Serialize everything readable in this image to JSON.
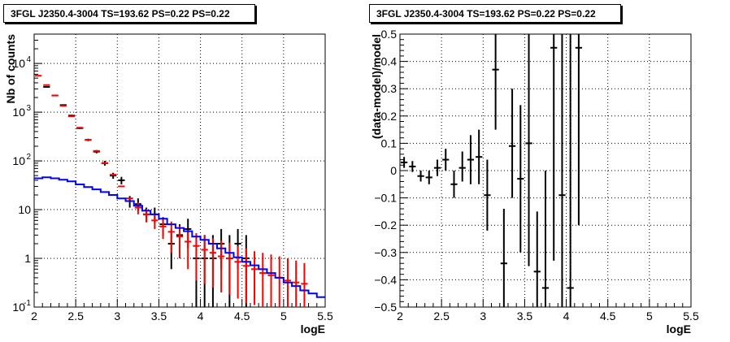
{
  "colors": {
    "data": "#000000",
    "model": "#ff0000",
    "background": "#0000ff",
    "grid": "#000000"
  },
  "chart_data": [
    {
      "type": "scatter",
      "title": "3FGL J2350.4-3004 TS=193.62 PS=0.22 PS=0.22",
      "xlabel": "logE",
      "ylabel": "Nb of counts",
      "log_y": true,
      "grid": true,
      "xlim": [
        2,
        5.5
      ],
      "ylim": [
        0.1,
        40000
      ],
      "xticks": [
        "2",
        "2.5",
        "3",
        "3.5",
        "4",
        "4.5",
        "5",
        "5.5"
      ],
      "yticks": [
        {
          "v": 0.1,
          "base": "10",
          "exp": "-1"
        },
        {
          "v": 1,
          "base": "1",
          "exp": ""
        },
        {
          "v": 10,
          "base": "10",
          "exp": ""
        },
        {
          "v": 100,
          "base": "10",
          "exp": "2"
        },
        {
          "v": 1000,
          "base": "10",
          "exp": "3"
        },
        {
          "v": 10000,
          "base": "10",
          "exp": "4"
        }
      ],
      "bin_width": 0.1,
      "series": [
        {
          "role": "data",
          "x": [
            2.15,
            2.25,
            2.35,
            2.45,
            2.55,
            2.65,
            2.75,
            2.85,
            2.95,
            3.05,
            3.15,
            3.25,
            3.35,
            3.45,
            3.55,
            3.65,
            3.75,
            3.85,
            3.95,
            4.05,
            4.15,
            4.25,
            4.35,
            4.45,
            4.55
          ],
          "y": [
            3300,
            2200,
            1400,
            850,
            470,
            270,
            155,
            90,
            50,
            40,
            15,
            13,
            8,
            8,
            5,
            2,
            3,
            4,
            1,
            1,
            1,
            2,
            1,
            2,
            1
          ],
          "ylo": [
            3200,
            2130,
            1360,
            820,
            450,
            255,
            143,
            80,
            43,
            33,
            11,
            9.5,
            5.5,
            5.5,
            3,
            0.6,
            1,
            1.6,
            0.1,
            0.1,
            0.1,
            0.6,
            0.1,
            0.6,
            0.1
          ],
          "yhi": [
            3400,
            2270,
            1440,
            880,
            490,
            285,
            167,
            100,
            57,
            47,
            19,
            17,
            11,
            11,
            7,
            4,
            5,
            6.5,
            3,
            3,
            3,
            4,
            3,
            4,
            3
          ]
        },
        {
          "role": "model",
          "x": [
            2.05,
            2.15,
            2.25,
            2.35,
            2.45,
            2.55,
            2.65,
            2.75,
            2.85,
            2.95,
            3.05,
            3.15,
            3.25,
            3.35,
            3.45,
            3.55,
            3.65,
            3.75,
            3.85,
            3.95,
            4.05,
            4.15,
            4.25,
            4.35,
            4.45,
            4.55,
            4.65,
            4.75,
            4.85,
            4.95,
            5.05,
            5.15,
            5.25
          ],
          "y": [
            5600,
            3600,
            2200,
            1350,
            820,
            480,
            270,
            160,
            90,
            52,
            30,
            17,
            11,
            8,
            6,
            4.5,
            3.5,
            2.8,
            2.2,
            1.8,
            1.5,
            1.3,
            1.1,
            1.0,
            0.85,
            0.7,
            0.6,
            0.5,
            0.45,
            0.4,
            0.35,
            0.32,
            0.3
          ],
          "ylo": [
            5600,
            3600,
            2200,
            1350,
            820,
            480,
            270,
            160,
            90,
            52,
            30,
            17,
            8,
            5.5,
            4,
            2.5,
            1.3,
            1.0,
            0.6,
            0.35,
            0.3,
            0.25,
            0.2,
            0.18,
            0.15,
            0.12,
            0.11,
            0.1,
            0.1,
            0.1,
            0.1,
            0.1,
            0.1
          ],
          "yhi": [
            5600,
            3600,
            2200,
            1350,
            820,
            480,
            270,
            160,
            90,
            52,
            30,
            17,
            14,
            10.5,
            8,
            6.5,
            5.7,
            4.6,
            3.8,
            3.3,
            2.9,
            2.6,
            2.3,
            2.1,
            1.8,
            1.6,
            1.4,
            1.3,
            1.2,
            1.1,
            1.0,
            0.9,
            0.8
          ]
        },
        {
          "role": "background",
          "step_edges": [
            2.0,
            2.1,
            2.2,
            2.3,
            2.4,
            2.5,
            2.6,
            2.7,
            2.8,
            2.9,
            3.0,
            3.1,
            3.2,
            3.3,
            3.4,
            3.5,
            3.6,
            3.7,
            3.8,
            3.9,
            4.0,
            4.1,
            4.2,
            4.3,
            4.4,
            4.5,
            4.6,
            4.7,
            4.8,
            4.9,
            5.0,
            5.1,
            5.2,
            5.3,
            5.4,
            5.5
          ],
          "y": [
            44,
            46,
            44,
            41,
            38,
            33,
            29,
            26,
            23,
            20,
            17,
            15,
            12,
            9.5,
            8,
            6.5,
            5,
            4.2,
            3.6,
            2.8,
            2.4,
            2,
            1.6,
            1.3,
            1.05,
            0.85,
            0.72,
            0.6,
            0.5,
            0.4,
            0.32,
            0.27,
            0.22,
            0.19,
            0.16
          ]
        }
      ]
    },
    {
      "type": "scatter",
      "title": "3FGL J2350.4-3004 TS=193.62 PS=0.22 PS=0.22",
      "xlabel": "logE",
      "ylabel": "(data-model)/model",
      "grid": true,
      "xlim": [
        2,
        5.5
      ],
      "ylim": [
        -0.5,
        0.5
      ],
      "xticks": [
        "2",
        "2.5",
        "3",
        "3.5",
        "4",
        "4.5",
        "5",
        "5.5"
      ],
      "yticks": [
        "-0.5",
        "-0.4",
        "-0.3",
        "-0.2",
        "-0.1",
        "0",
        "0.1",
        "0.2",
        "0.3",
        "0.4",
        "0.5"
      ],
      "bin_width": 0.1,
      "series": [
        {
          "role": "residual",
          "x": [
            2.05,
            2.15,
            2.25,
            2.35,
            2.45,
            2.55,
            2.65,
            2.75,
            2.85,
            2.95,
            3.05,
            3.15,
            3.25,
            3.35,
            3.45,
            3.55,
            3.65,
            3.75,
            3.85,
            3.95,
            4.05,
            4.15
          ],
          "y": [
            0.03,
            0.015,
            -0.02,
            -0.025,
            0.01,
            0.04,
            -0.05,
            0.01,
            0.04,
            0.05,
            -0.09,
            0.37,
            -0.34,
            0.09,
            -0.03,
            0.1,
            -0.37,
            -0.43,
            0.45,
            -0.09,
            -0.43,
            0.45
          ],
          "ylo": [
            0.01,
            -0.005,
            -0.04,
            -0.05,
            -0.02,
            0.0,
            -0.1,
            -0.04,
            -0.05,
            -0.05,
            -0.22,
            0.15,
            -0.6,
            -0.1,
            -0.3,
            -0.35,
            -0.6,
            -0.6,
            -0.33,
            -0.6,
            -0.6,
            -0.2
          ],
          "yhi": [
            0.05,
            0.035,
            0.0,
            0.0,
            0.04,
            0.08,
            0.0,
            0.07,
            0.13,
            0.15,
            0.04,
            0.6,
            -0.14,
            0.3,
            0.24,
            0.6,
            -0.15,
            0.0,
            0.6,
            0.6,
            0.6,
            0.6
          ]
        }
      ]
    }
  ]
}
